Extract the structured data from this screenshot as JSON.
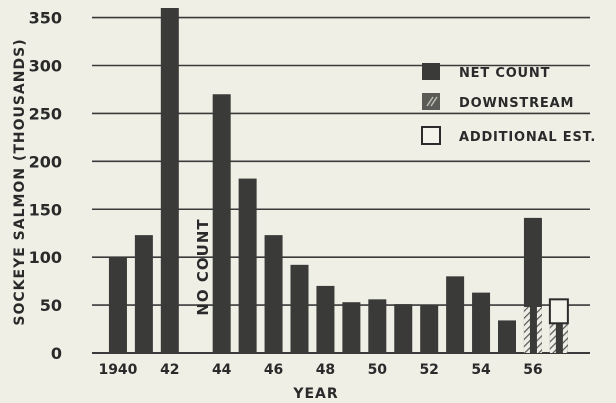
{
  "chart_data": {
    "type": "bar",
    "ylabel": "SOCKEYE SALMON (THOUSANDS)",
    "xlabel": "YEAR",
    "ylim": [
      0,
      360
    ],
    "yticks": [
      0,
      50,
      100,
      150,
      200,
      250,
      300,
      350
    ],
    "grid": true,
    "legend_position": "top-right",
    "x_range": [
      1939,
      1958.2
    ],
    "x_tick_labels": [
      {
        "year": 1940,
        "label": "1940"
      },
      {
        "year": 1942,
        "label": "42"
      },
      {
        "year": 1944,
        "label": "44"
      },
      {
        "year": 1946,
        "label": "46"
      },
      {
        "year": 1948,
        "label": "48"
      },
      {
        "year": 1950,
        "label": "50"
      },
      {
        "year": 1952,
        "label": "52"
      },
      {
        "year": 1954,
        "label": "54"
      },
      {
        "year": 1956,
        "label": "56"
      }
    ],
    "series": [
      {
        "name": "NET COUNT",
        "x": [
          1940,
          1941,
          1942,
          1944,
          1945,
          1946,
          1947,
          1948,
          1949,
          1950,
          1951,
          1952,
          1953,
          1954,
          1955,
          1956,
          1957
        ],
        "values": [
          100,
          123,
          360,
          270,
          182,
          123,
          92,
          70,
          53,
          56,
          51,
          50,
          80,
          63,
          34,
          141,
          31
        ]
      },
      {
        "name": "DOWNSTREAM",
        "x": [
          1956,
          1957
        ],
        "values": [
          48,
          31
        ]
      },
      {
        "name": "ADDITIONAL EST.",
        "x": [
          1957
        ],
        "values": [
          25
        ]
      }
    ],
    "annotations": [
      {
        "text": "NO COUNT",
        "x": 1943
      }
    ],
    "colors": {
      "net": "#3a3a38",
      "downstream": "#5a5a57",
      "additional": "#f3f3ec",
      "grid": "#3a3a3a",
      "background": "#efefe6"
    }
  }
}
